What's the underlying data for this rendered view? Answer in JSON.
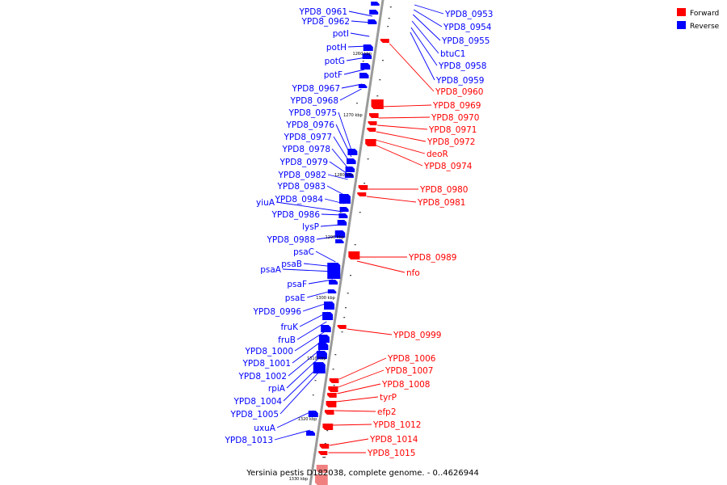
{
  "caption": "Yersinia pestis D182038, complete genome. - 0..4626944",
  "legend": [
    {
      "label": "Forward",
      "color": "#ff0000"
    },
    {
      "label": "Reverse",
      "color": "#0000ff"
    }
  ],
  "colors": {
    "forward": "#ff0000",
    "reverse": "#0000ff",
    "forward_light": "#f08080",
    "backbone": "#9a9a9a"
  },
  "ticks": [
    "1260 kbp",
    "1270 kbp",
    "1280 kbp",
    "1290 kbp",
    "1300 kbp",
    "1310 kbp",
    "1320 kbp",
    "1330 kbp"
  ],
  "reverse_labels": [
    "YPD8_0961",
    "YPD8_0962",
    "potI",
    "potH",
    "potG",
    "potF",
    "YPD8_0967",
    "YPD8_0968",
    "YPD8_0975",
    "YPD8_0976",
    "YPD8_0977",
    "YPD8_0978",
    "YPD8_0979",
    "YPD8_0982",
    "YPD8_0983",
    "YPD8_0984",
    "yiuA",
    "YPD8_0986",
    "lysP",
    "YPD8_0988",
    "psaC",
    "psaB",
    "psaA",
    "psaF",
    "psaE",
    "YPD8_0996",
    "fruK",
    "fruB",
    "YPD8_1000",
    "YPD8_1001",
    "YPD8_1002",
    "rpiA",
    "YPD8_1004",
    "YPD8_1005",
    "uxuA",
    "YPD8_1013"
  ],
  "reverse_top_labels": [
    "YPD8_0953",
    "YPD8_0954",
    "YPD8_0955",
    "btuC1",
    "YPD8_0958",
    "YPD8_0959"
  ],
  "forward_labels": [
    "YPD8_0960",
    "YPD8_0969",
    "YPD8_0970",
    "YPD8_0971",
    "YPD8_0972",
    "deoR",
    "YPD8_0974",
    "YPD8_0980",
    "YPD8_0981",
    "YPD8_0989",
    "nfo",
    "YPD8_0999",
    "YPD8_1006",
    "YPD8_1007",
    "YPD8_1008",
    "tyrP",
    "efp2",
    "YPD8_1012",
    "YPD8_1014",
    "YPD8_1015"
  ]
}
